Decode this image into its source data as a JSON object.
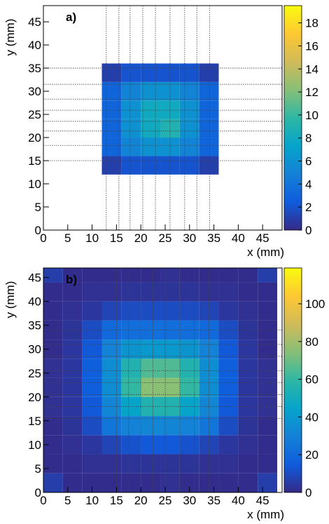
{
  "chart_data": [
    {
      "type": "heatmap",
      "label": "a)",
      "xlabel": "x (mm)",
      "ylabel": "y (mm)",
      "xlim": [
        0,
        49
      ],
      "ylim": [
        0,
        48.5
      ],
      "xticks": [
        0,
        5,
        10,
        15,
        20,
        25,
        30,
        35,
        40,
        45
      ],
      "yticks": [
        0,
        5,
        10,
        15,
        20,
        25,
        30,
        35,
        40,
        45
      ],
      "x_edges": [
        0,
        4,
        8,
        12,
        16,
        20,
        24,
        28,
        32,
        36,
        40,
        44,
        48
      ],
      "y_edges": [
        0,
        4,
        8,
        12,
        16,
        20,
        24,
        28,
        32,
        36,
        40,
        44,
        48
      ],
      "z": [
        [
          0,
          0,
          0,
          0,
          0,
          0,
          0,
          0,
          0,
          0,
          0,
          0
        ],
        [
          0,
          0,
          0,
          0,
          0,
          0,
          0,
          0,
          0,
          0,
          0,
          0
        ],
        [
          0,
          0,
          0,
          0,
          0,
          0,
          0,
          0,
          0,
          0,
          0,
          0
        ],
        [
          0,
          0,
          0,
          1,
          2,
          2,
          2,
          2,
          1,
          0,
          0,
          0
        ],
        [
          0,
          0,
          0,
          3,
          5,
          6,
          6,
          5,
          3,
          0,
          0,
          0
        ],
        [
          0,
          0,
          0,
          3,
          6,
          8,
          9,
          6,
          3,
          0,
          0,
          0
        ],
        [
          0,
          0,
          0,
          3,
          6,
          8,
          8,
          6,
          3,
          0,
          0,
          0
        ],
        [
          0,
          0,
          0,
          3,
          5,
          6,
          6,
          5,
          3,
          0,
          0,
          0
        ],
        [
          0,
          0,
          0,
          1,
          2,
          2,
          2,
          2,
          1,
          0,
          0,
          0
        ],
        [
          0,
          0,
          0,
          0,
          0,
          0,
          0,
          0,
          0,
          0,
          0,
          0
        ],
        [
          0,
          0,
          0,
          0,
          0,
          0,
          0,
          0,
          0,
          0,
          0,
          0
        ],
        [
          0,
          0,
          0,
          0,
          0,
          0,
          0,
          0,
          0,
          0,
          0,
          0
        ]
      ],
      "zlim": [
        0,
        19.5
      ],
      "zticks": [
        0,
        2,
        4,
        6,
        8,
        10,
        12,
        14,
        16,
        18
      ],
      "colormap": [
        "#352a87",
        "#0f5cdd",
        "#1481d6",
        "#06a4ca",
        "#2eb7a4",
        "#87bf77",
        "#d1bb59",
        "#fec832",
        "#f9fb0e"
      ],
      "vlines": [
        12.9,
        15.5,
        17.8,
        20.4,
        23,
        26,
        29,
        31.5,
        34.1
      ],
      "hlines": [
        15,
        18.3,
        21.4,
        23.5,
        25.9,
        28.3,
        31.5,
        35
      ]
    },
    {
      "type": "heatmap",
      "label": "b)",
      "xlabel": "x (mm)",
      "ylabel": "y (mm)",
      "xlim": [
        0,
        49
      ],
      "ylim": [
        0,
        47
      ],
      "xticks": [
        0,
        5,
        10,
        15,
        20,
        25,
        30,
        35,
        40,
        45
      ],
      "yticks": [
        0,
        5,
        10,
        15,
        20,
        25,
        30,
        35,
        40,
        45
      ],
      "x_edges": [
        0,
        4,
        8,
        12,
        16,
        20,
        24,
        28,
        32,
        36,
        40,
        44,
        48
      ],
      "y_edges": [
        0,
        4,
        8,
        12,
        16,
        20,
        24,
        28,
        32,
        36,
        40,
        44,
        48
      ],
      "z": [
        [
          6,
          1,
          1,
          1,
          1,
          1,
          2,
          1,
          1,
          1,
          1,
          6
        ],
        [
          1,
          1,
          2,
          2,
          3,
          3,
          3,
          3,
          2,
          2,
          1,
          1
        ],
        [
          1,
          2,
          4,
          8,
          12,
          14,
          14,
          12,
          8,
          4,
          2,
          1
        ],
        [
          1,
          3,
          10,
          25,
          30,
          32,
          32,
          30,
          25,
          10,
          3,
          1
        ],
        [
          2,
          4,
          14,
          32,
          45,
          55,
          55,
          45,
          32,
          14,
          4,
          2
        ],
        [
          2,
          4,
          16,
          35,
          60,
          75,
          75,
          60,
          35,
          16,
          4,
          2
        ],
        [
          2,
          4,
          16,
          35,
          55,
          65,
          65,
          55,
          35,
          16,
          4,
          2
        ],
        [
          1,
          4,
          14,
          30,
          38,
          40,
          40,
          38,
          30,
          14,
          4,
          1
        ],
        [
          1,
          3,
          10,
          20,
          22,
          22,
          22,
          22,
          20,
          10,
          3,
          1
        ],
        [
          1,
          2,
          4,
          8,
          10,
          10,
          10,
          10,
          8,
          4,
          2,
          1
        ],
        [
          1,
          1,
          2,
          2,
          3,
          3,
          3,
          3,
          2,
          2,
          1,
          1
        ],
        [
          6,
          1,
          1,
          1,
          1,
          1,
          2,
          1,
          1,
          1,
          1,
          6
        ]
      ],
      "zlim": [
        0,
        119
      ],
      "zticks": [
        0,
        20,
        40,
        60,
        80,
        100
      ],
      "colormap": [
        "#352a87",
        "#0f5cdd",
        "#1481d6",
        "#06a4ca",
        "#2eb7a4",
        "#87bf77",
        "#d1bb59",
        "#fec832",
        "#f9fb0e"
      ],
      "vlines": [
        15,
        17.5,
        20,
        22.5,
        25,
        28,
        31,
        34
      ],
      "hlines": [
        15.5,
        18,
        20.5,
        23,
        25.5,
        28.5,
        31,
        34
      ]
    }
  ]
}
